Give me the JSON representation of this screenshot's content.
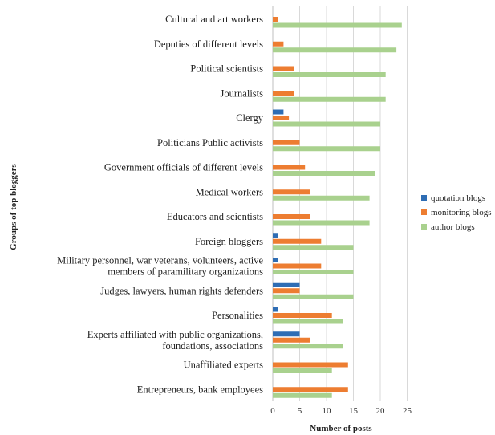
{
  "chart_data": {
    "type": "bar",
    "orientation": "horizontal",
    "title": "",
    "xlabel": "Number of posts",
    "ylabel": "Groups of top bloggers",
    "xlim": [
      0,
      25
    ],
    "xticks": [
      0,
      5,
      10,
      15,
      20,
      25
    ],
    "grid": "vertical",
    "legend_position": "right",
    "categories": [
      [
        "Cultural and art workers"
      ],
      [
        "Deputies of different levels"
      ],
      [
        "Political scientists"
      ],
      [
        "Journalists"
      ],
      [
        "Clergy"
      ],
      [
        "Politicians Public activists"
      ],
      [
        "Government officials of different levels"
      ],
      [
        "Medical workers"
      ],
      [
        "Educators and scientists"
      ],
      [
        "Foreign bloggers"
      ],
      [
        "Military personnel, war veterans, volunteers, active",
        "members of paramilitary organizations"
      ],
      [
        "Judges, lawyers, human rights defenders"
      ],
      [
        "Personalities"
      ],
      [
        "Experts affiliated with public organizations,",
        "foundations, associations"
      ],
      [
        "Unaffiliated experts"
      ],
      [
        "Entrepreneurs, bank employees"
      ]
    ],
    "series": [
      {
        "name": "quotation blogs",
        "color": "#2E6DB4",
        "values": [
          0,
          0,
          0,
          0,
          2,
          0,
          0,
          0,
          0,
          1,
          1,
          5,
          1,
          5,
          0,
          0
        ]
      },
      {
        "name": "monitoring blogs",
        "color": "#ED7D31",
        "values": [
          1,
          2,
          4,
          4,
          3,
          5,
          6,
          7,
          7,
          9,
          9,
          5,
          11,
          7,
          14,
          14
        ]
      },
      {
        "name": "author blogs",
        "color": "#A9D18E",
        "values": [
          24,
          23,
          21,
          21,
          20,
          20,
          19,
          18,
          18,
          15,
          15,
          15,
          13,
          13,
          11,
          11
        ]
      }
    ]
  }
}
